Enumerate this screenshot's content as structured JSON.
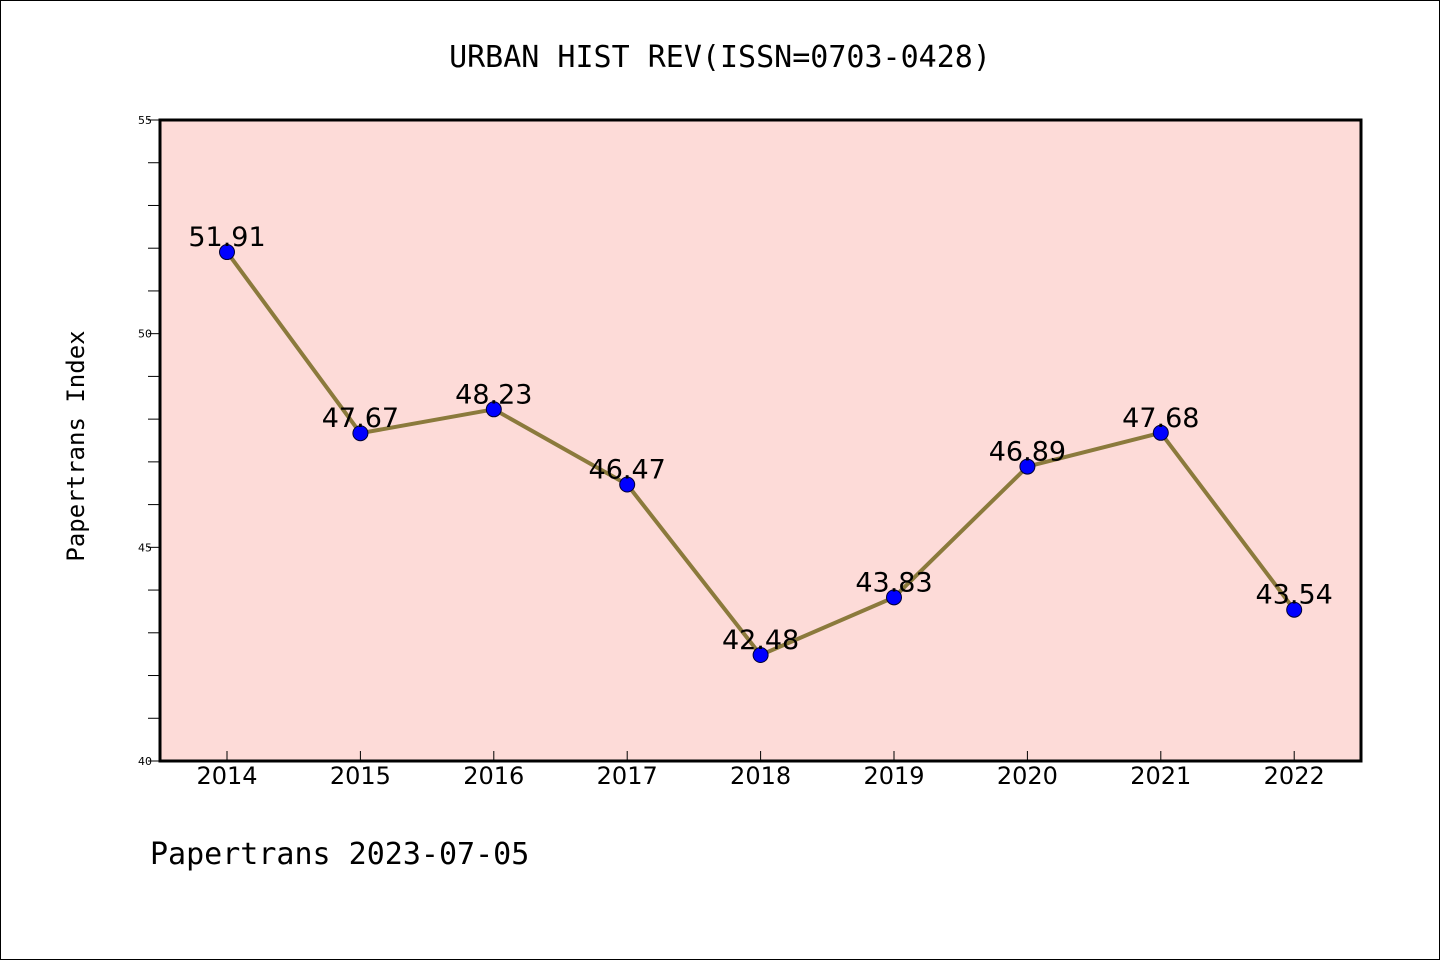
{
  "chart_data": {
    "type": "line",
    "title": "URBAN HIST REV(ISSN=0703-0428)",
    "ylabel": "Papertrans Index",
    "xlabel": "",
    "footer": "Papertrans 2023-07-05",
    "categories": [
      "2014",
      "2015",
      "2016",
      "2017",
      "2018",
      "2019",
      "2020",
      "2021",
      "2022"
    ],
    "values": [
      51.91,
      47.67,
      48.23,
      46.47,
      42.48,
      43.83,
      46.89,
      47.68,
      43.54
    ],
    "data_labels": [
      "51.91",
      "47.67",
      "48.23",
      "46.47",
      "42.48",
      "43.83",
      "46.89",
      "47.68",
      "43.54"
    ],
    "ylim": [
      40,
      55
    ],
    "yticks": [
      40,
      45,
      50,
      55
    ],
    "ytick_labels": [
      "40",
      "45",
      "50",
      "55"
    ],
    "grid": false,
    "legend": "none",
    "colors": {
      "plot_background": "#fddbd8",
      "line": "#8b7a3c",
      "marker": "#0000ff"
    }
  }
}
